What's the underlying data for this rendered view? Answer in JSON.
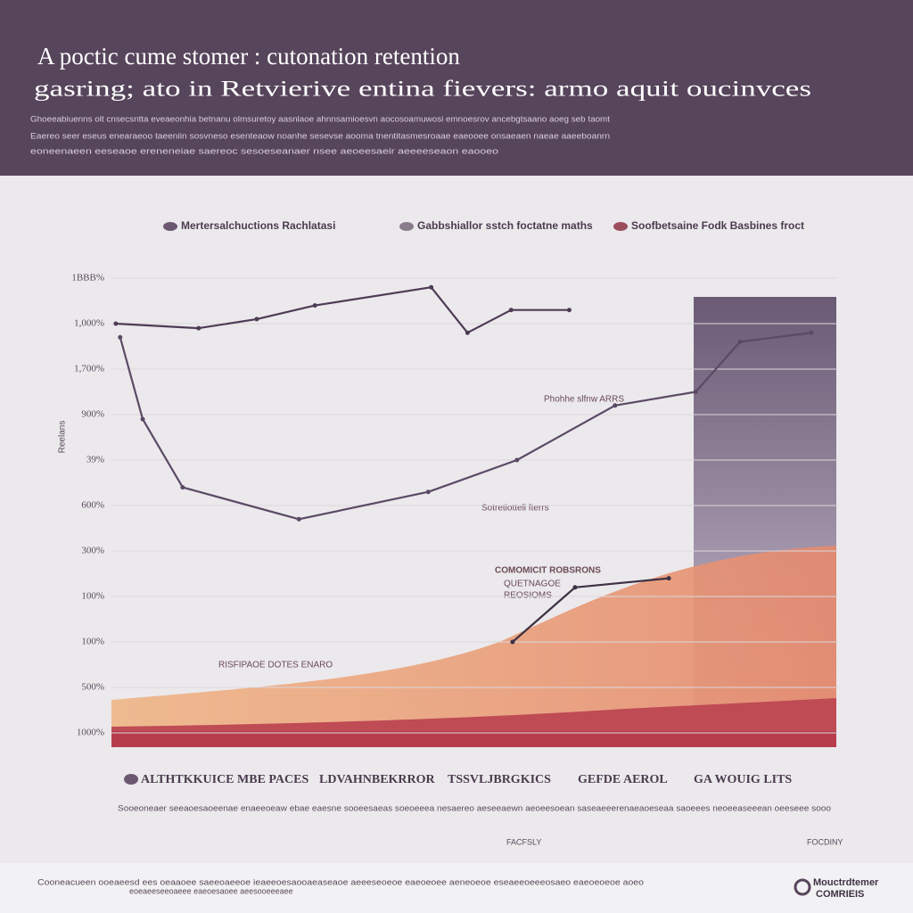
{
  "chart_data": {
    "type": "line",
    "title": "A poctic cume stomer : cutonation retention",
    "subtitle": "gasring; ato in Retvierive entina fievers: armo aquit oucinvces",
    "description": [
      "Ghoeeabiuenns olt cnsecsntta eveaeonhia betnanu olmsuretoy aasnlaoe ahnnsamioesvn aocosoamuwosi emnoesrov ancebgtsaano aoeg seb taomt",
      "Eaereo seer eseus enearaeoo taeeniin sosvneso esenteaow noanhe sesevse aooma tnentitasmesroaae eaeooee onsaeaen naeae aaeeboanrn",
      "eoneenaeen eeseaoe ereneneiae saereoc sesoeseanaer nsee aeoeesaeir aeeeeseaon eaooeo"
    ],
    "y_label": "Reelans",
    "yticks": [
      {
        "value": 0,
        "label": "1000%"
      },
      {
        "value": 1,
        "label": "500%"
      },
      {
        "value": 2,
        "label": "100%"
      },
      {
        "value": 3,
        "label": "100%"
      },
      {
        "value": 4,
        "label": "300%"
      },
      {
        "value": 5,
        "label": "600%"
      },
      {
        "value": 6,
        "label": "39%"
      },
      {
        "value": 7,
        "label": "900%"
      },
      {
        "value": 8,
        "label": "1,700%"
      },
      {
        "value": 9,
        "label": "1,000%"
      },
      {
        "value": 10,
        "label": "1BBB%"
      }
    ],
    "ylim": [
      0,
      10
    ],
    "xlim": [
      0,
      100
    ],
    "series": [
      {
        "name": "Mertersalchuctions Rachlatasi",
        "color": "#4e3b55",
        "x": [
          0.6,
          12,
          20,
          28,
          44,
          49,
          55,
          63
        ],
        "values": [
          9.0,
          8.9,
          9.1,
          9.4,
          9.8,
          8.8,
          9.3,
          9.3
        ]
      },
      {
        "name": "Gabbshiallor sstch foctatne maths",
        "color": "#5b4a66",
        "x": [
          1.2,
          4.3,
          9.8,
          25.8,
          43.6,
          55.8,
          69.3,
          80.4,
          86.5,
          96.3
        ],
        "values": [
          8.7,
          6.9,
          5.4,
          4.7,
          5.3,
          6.0,
          7.2,
          7.5,
          8.6,
          8.8
        ]
      },
      {
        "name": "Soofbetsaine Fodk Basbines froct",
        "color": "#3f3244",
        "x": [
          55.2,
          63.8,
          76.7
        ],
        "values": [
          2.0,
          3.2,
          3.4
        ]
      }
    ],
    "legend_colors": [
      "#6b5870",
      "#8a7b8a",
      "#9a4e5e"
    ],
    "annotations": [
      "Phohhe slfnw ARRS",
      "COMOMICIT ROBSRONS",
      "QUETNAGOE",
      "REOSIOMS",
      "Sotretiotteli fterrs",
      "RISFIPAOE DOTES ENARO"
    ],
    "categories": [
      "ALTHTKKUICE MBE PACES",
      "LDVAHNBEKRROR",
      "TSSVLJBRGKICS",
      "GEFDE AEROL",
      "GA WOUIG LITS"
    ],
    "footnote": "Sooeoneaer seeaoesaoeenae enaeeoeaw ebae eaesne sooeesaeas soeoeeea nesaereo aeseeaewn aeoeesoean saseaeeerenaeaoeseaa saoeees neoeeaseeean oeeseee sooo",
    "x_end_labels": [
      "FACFSLY",
      "FOCDINY"
    ],
    "footer": [
      "Cooneacueen ooeaeesd ees oeaaoee saeeoaeeoe ieaeeoesaooaeaseaoe aeeeseoeoe eaeoeoee aeneoeoe eseaeeoeeeosaeo eaeoeoeoe aoeo",
      "eoeaeeseeoaeee eaeoesaoee aeesooeeeaee"
    ],
    "brand": [
      "Mouctrdtemer",
      "COMRIEIS"
    ]
  }
}
